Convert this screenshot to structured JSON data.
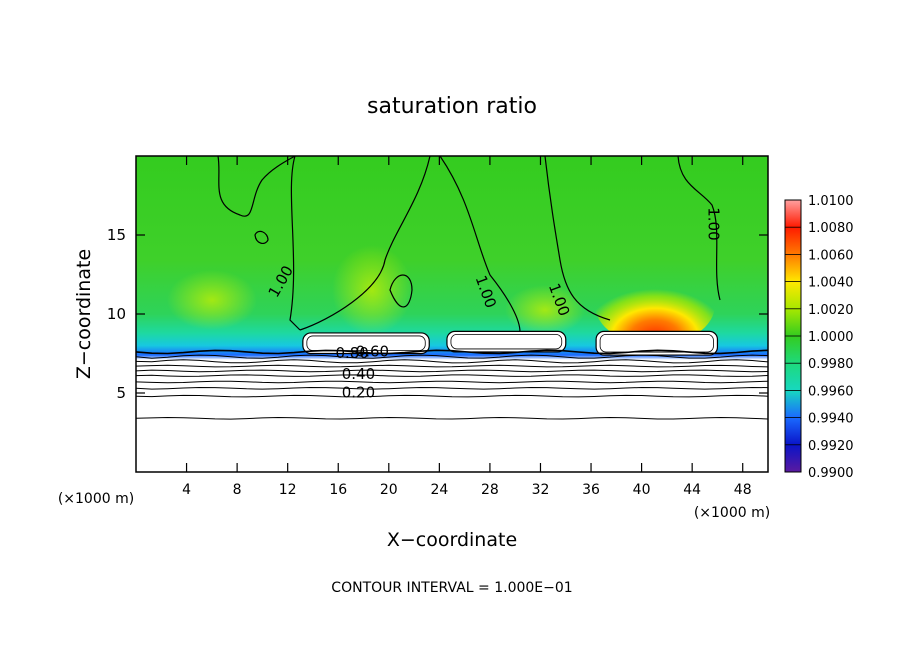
{
  "chart_data": {
    "type": "heatmap",
    "title": "saturation ratio",
    "xlabel": "X−coordinate",
    "ylabel": "Z−coordinate",
    "x_unit_label": "(×1000 m)",
    "z_unit_label": "(×1000 m)",
    "footer": "CONTOUR INTERVAL = 1.000E−01",
    "xlim": [
      0,
      50
    ],
    "ylim": [
      0,
      20
    ],
    "x_ticks": [
      4,
      8,
      12,
      16,
      20,
      24,
      28,
      32,
      36,
      40,
      44,
      48
    ],
    "y_ticks": [
      5,
      10,
      15
    ],
    "colorbar": {
      "levels": [
        "1.0100",
        "1.0080",
        "1.0060",
        "1.0040",
        "1.0020",
        "1.0000",
        "0.9980",
        "0.9960",
        "0.9940",
        "0.9920",
        "0.9900"
      ],
      "colors": [
        "#ffa0a0",
        "#ff1a00",
        "#ff7a00",
        "#ffe800",
        "#a8e800",
        "#34cc1f",
        "#1ed97c",
        "#17d8c0",
        "#1a6aff",
        "#0a14c8",
        "#5a1aa0"
      ]
    },
    "contour_labels": [
      {
        "text": "1.00",
        "x": 11.8,
        "z": 11.9
      },
      {
        "text": "1.00",
        "x": 27.3,
        "z": 11.3
      },
      {
        "text": "1.00",
        "x": 33.1,
        "z": 10.8
      },
      {
        "text": "1.00",
        "x": 45.3,
        "z": 15.7
      },
      {
        "text": "0.80",
        "x": 17.1,
        "z": 7.2
      },
      {
        "text": "0.60",
        "x": 18.7,
        "z": 7.3
      },
      {
        "text": "0.40",
        "x": 17.6,
        "z": 5.9
      },
      {
        "text": "0.20",
        "x": 17.6,
        "z": 4.7
      }
    ],
    "contour_levels_below_cloud": [
      7.6,
      7.3,
      7.0,
      6.7,
      6.4,
      6.1,
      5.7,
      5.3,
      4.8,
      3.4
    ],
    "cloud_regions": [
      {
        "x": [
          13.2,
          23.2
        ],
        "z": [
          7.5,
          8.8
        ]
      },
      {
        "x": [
          24.6,
          34.0
        ],
        "z": [
          7.6,
          8.9
        ]
      },
      {
        "x": [
          36.4,
          46.0
        ],
        "z": [
          7.4,
          8.9
        ]
      }
    ],
    "grid": false
  }
}
